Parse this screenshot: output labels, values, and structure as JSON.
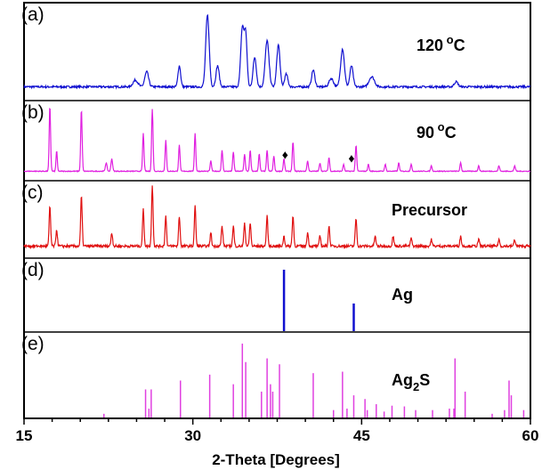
{
  "chart_data": {
    "type": "line",
    "xlabel": "2-Theta [Degrees]",
    "xlim": [
      15,
      60
    ],
    "x_ticks": [
      "15",
      "30",
      "45",
      "60"
    ],
    "panels": [
      {
        "id": "a",
        "letter": "(a)",
        "label": "120",
        "label_unit": "C",
        "label_sup": "o",
        "kind": "pattern",
        "color": "#1010d0",
        "baseline": 0.1,
        "noise": 0.012,
        "peaks": [
          [
            24.9,
            0.08,
            0.45
          ],
          [
            25.9,
            0.18,
            0.35
          ],
          [
            28.8,
            0.25,
            0.25
          ],
          [
            31.3,
            0.85,
            0.32
          ],
          [
            32.2,
            0.25,
            0.3
          ],
          [
            34.4,
            0.7,
            0.3
          ],
          [
            34.7,
            0.6,
            0.25
          ],
          [
            35.5,
            0.35,
            0.3
          ],
          [
            36.6,
            0.55,
            0.35
          ],
          [
            37.6,
            0.5,
            0.3
          ],
          [
            38.3,
            0.15,
            0.3
          ],
          [
            40.7,
            0.2,
            0.3
          ],
          [
            42.3,
            0.1,
            0.4
          ],
          [
            43.3,
            0.45,
            0.35
          ],
          [
            44.1,
            0.25,
            0.3
          ],
          [
            45.9,
            0.12,
            0.5
          ],
          [
            53.4,
            0.06,
            0.35
          ]
        ]
      },
      {
        "id": "b",
        "letter": "(b)",
        "label": "90",
        "label_unit": "C",
        "label_sup": "o",
        "kind": "pattern",
        "color": "#e020e0",
        "baseline": 0.06,
        "noise": 0.006,
        "peaks": [
          [
            17.3,
            0.95,
            0.13
          ],
          [
            17.9,
            0.3,
            0.12
          ],
          [
            20.1,
            0.9,
            0.13
          ],
          [
            22.3,
            0.12,
            0.15
          ],
          [
            22.8,
            0.18,
            0.15
          ],
          [
            25.6,
            0.55,
            0.13
          ],
          [
            26.4,
            0.9,
            0.13
          ],
          [
            27.6,
            0.45,
            0.13
          ],
          [
            28.8,
            0.38,
            0.13
          ],
          [
            30.2,
            0.55,
            0.13
          ],
          [
            31.6,
            0.15,
            0.13
          ],
          [
            32.6,
            0.3,
            0.13
          ],
          [
            33.6,
            0.28,
            0.13
          ],
          [
            34.6,
            0.25,
            0.13
          ],
          [
            35.1,
            0.3,
            0.13
          ],
          [
            35.9,
            0.25,
            0.13
          ],
          [
            36.6,
            0.3,
            0.13
          ],
          [
            37.2,
            0.22,
            0.13
          ],
          [
            38.1,
            0.18,
            0.13
          ],
          [
            38.9,
            0.42,
            0.13
          ],
          [
            40.2,
            0.15,
            0.13
          ],
          [
            41.3,
            0.12,
            0.13
          ],
          [
            42.1,
            0.2,
            0.13
          ],
          [
            43.4,
            0.1,
            0.13
          ],
          [
            44.5,
            0.38,
            0.13
          ],
          [
            45.6,
            0.1,
            0.13
          ],
          [
            47.1,
            0.1,
            0.13
          ],
          [
            48.3,
            0.12,
            0.13
          ],
          [
            49.4,
            0.1,
            0.13
          ],
          [
            51.2,
            0.08,
            0.13
          ],
          [
            53.8,
            0.12,
            0.13
          ],
          [
            55.4,
            0.08,
            0.13
          ],
          [
            57.2,
            0.08,
            0.13
          ],
          [
            58.6,
            0.08,
            0.13
          ]
        ],
        "markers": [
          38.2,
          44.1
        ],
        "marker_symbol": "♦"
      },
      {
        "id": "c",
        "letter": "(c)",
        "label": "Precursor",
        "kind": "pattern",
        "color": "#e01010",
        "baseline": 0.1,
        "noise": 0.02,
        "peaks": [
          [
            17.3,
            0.6,
            0.14
          ],
          [
            17.9,
            0.25,
            0.14
          ],
          [
            20.1,
            0.75,
            0.14
          ],
          [
            22.8,
            0.2,
            0.15
          ],
          [
            25.6,
            0.55,
            0.14
          ],
          [
            26.4,
            0.9,
            0.14
          ],
          [
            27.6,
            0.45,
            0.14
          ],
          [
            28.8,
            0.45,
            0.14
          ],
          [
            30.2,
            0.6,
            0.14
          ],
          [
            31.6,
            0.2,
            0.14
          ],
          [
            32.6,
            0.3,
            0.14
          ],
          [
            33.6,
            0.3,
            0.14
          ],
          [
            34.6,
            0.35,
            0.14
          ],
          [
            35.1,
            0.35,
            0.14
          ],
          [
            36.6,
            0.45,
            0.14
          ],
          [
            38.1,
            0.15,
            0.14
          ],
          [
            38.9,
            0.45,
            0.14
          ],
          [
            40.2,
            0.2,
            0.14
          ],
          [
            41.3,
            0.15,
            0.14
          ],
          [
            42.1,
            0.3,
            0.14
          ],
          [
            44.5,
            0.42,
            0.14
          ],
          [
            46.2,
            0.15,
            0.14
          ],
          [
            47.8,
            0.15,
            0.14
          ],
          [
            49.4,
            0.12,
            0.14
          ],
          [
            51.2,
            0.1,
            0.14
          ],
          [
            53.8,
            0.15,
            0.14
          ],
          [
            55.4,
            0.1,
            0.14
          ],
          [
            57.2,
            0.1,
            0.14
          ],
          [
            58.6,
            0.1,
            0.14
          ]
        ]
      },
      {
        "id": "d",
        "letter": "(d)",
        "label": "Ag",
        "kind": "sticks",
        "color": "#1010d0",
        "sticks": [
          [
            38.1,
            1.0
          ],
          [
            44.3,
            0.45
          ]
        ]
      },
      {
        "id": "e",
        "letter": "(e)",
        "label": "Ag",
        "label_sub": "2",
        "label_tail": "S",
        "kind": "sticks",
        "color": "#e040e0",
        "sticks": [
          [
            22.1,
            0.05
          ],
          [
            25.8,
            0.38
          ],
          [
            26.1,
            0.12
          ],
          [
            26.3,
            0.38
          ],
          [
            28.9,
            0.5
          ],
          [
            31.5,
            0.58
          ],
          [
            33.6,
            0.45
          ],
          [
            34.4,
            1.0
          ],
          [
            34.7,
            0.75
          ],
          [
            36.1,
            0.35
          ],
          [
            36.6,
            0.8
          ],
          [
            36.9,
            0.45
          ],
          [
            37.1,
            0.35
          ],
          [
            37.7,
            0.72
          ],
          [
            40.7,
            0.6
          ],
          [
            42.5,
            0.1
          ],
          [
            43.3,
            0.62
          ],
          [
            43.7,
            0.12
          ],
          [
            44.3,
            0.3
          ],
          [
            45.3,
            0.25
          ],
          [
            45.5,
            0.1
          ],
          [
            46.3,
            0.18
          ],
          [
            47.0,
            0.08
          ],
          [
            47.7,
            0.16
          ],
          [
            48.8,
            0.15
          ],
          [
            49.8,
            0.1
          ],
          [
            51.3,
            0.1
          ],
          [
            52.8,
            0.12
          ],
          [
            53.2,
            0.12
          ],
          [
            53.3,
            0.8
          ],
          [
            54.2,
            0.35
          ],
          [
            56.6,
            0.05
          ],
          [
            57.7,
            0.1
          ],
          [
            58.1,
            0.5
          ],
          [
            58.3,
            0.3
          ],
          [
            59.4,
            0.1
          ]
        ]
      }
    ]
  }
}
